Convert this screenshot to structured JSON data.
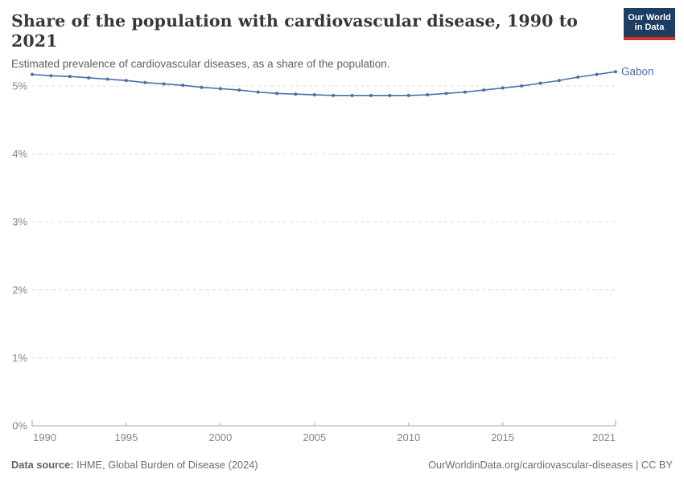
{
  "header": {
    "title": "Share of the population with cardiovascular disease, 1990 to 2021",
    "subtitle": "Estimated prevalence of cardiovascular diseases, as a share of the population."
  },
  "logo": {
    "line1": "Our World",
    "line2": "in Data",
    "bg_color": "#1d3d63",
    "accent_color": "#d63021"
  },
  "chart_data": {
    "type": "line",
    "title": "Share of the population with cardiovascular disease, 1990 to 2021",
    "xlabel": "",
    "ylabel": "",
    "xlim": [
      1990,
      2021
    ],
    "ylim": [
      0,
      5.5
    ],
    "grid": "horizontal-dashed",
    "legend_position": "end-of-line-label",
    "x_ticks": [
      1990,
      1995,
      2000,
      2005,
      2010,
      2015,
      2021
    ],
    "y_ticks": [
      0,
      1,
      2,
      3,
      4,
      5
    ],
    "y_tick_suffix": "%",
    "line_color": "#4c6da8",
    "axis_color": "#a3a3a3",
    "grid_color": "#dcdcdc",
    "tick_label_color": "#858585",
    "series": [
      {
        "name": "Gabon",
        "color": "#4c6da8",
        "x": [
          1990,
          1991,
          1992,
          1993,
          1994,
          1995,
          1996,
          1997,
          1998,
          1999,
          2000,
          2001,
          2002,
          2003,
          2004,
          2005,
          2006,
          2007,
          2008,
          2009,
          2010,
          2011,
          2012,
          2013,
          2014,
          2015,
          2016,
          2017,
          2018,
          2019,
          2020,
          2021
        ],
        "values": [
          5.17,
          5.15,
          5.14,
          5.12,
          5.1,
          5.08,
          5.05,
          5.03,
          5.01,
          4.98,
          4.96,
          4.94,
          4.91,
          4.89,
          4.88,
          4.87,
          4.86,
          4.86,
          4.86,
          4.86,
          4.86,
          4.87,
          4.89,
          4.91,
          4.94,
          4.97,
          5.0,
          5.04,
          5.08,
          5.13,
          5.17,
          5.21
        ]
      }
    ],
    "end_label": "Gabon"
  },
  "footer": {
    "data_source_label": "Data source:",
    "data_source": "IHME, Global Burden of Disease (2024)",
    "credit": "OurWorldinData.org/cardiovascular-diseases | CC BY"
  }
}
